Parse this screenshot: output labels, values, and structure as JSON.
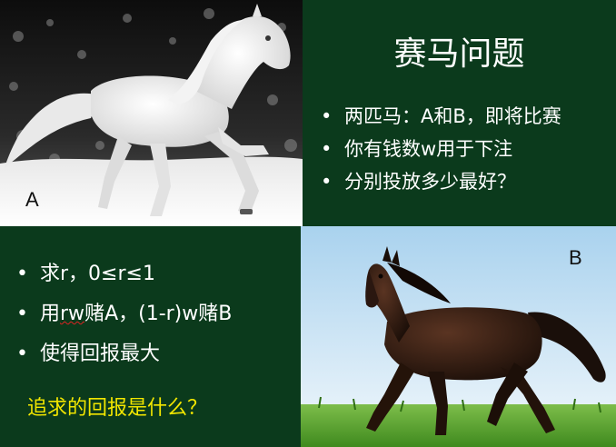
{
  "top_left": {
    "label": "A"
  },
  "top_right": {
    "title": "赛马问题",
    "bullets": [
      "两匹马：A和B，即将比赛",
      "你有钱数w用于下注",
      "分别投放多少最好？"
    ]
  },
  "bottom_left": {
    "bullet_1": "求r，0≤r≤1",
    "bullet_2_prefix": "用",
    "bullet_2_underlined": "rw",
    "bullet_2_suffix": "赌A，(1-r)w赌B",
    "bullet_3": "使得回报最大",
    "question": "追求的回报是什么？"
  },
  "bottom_right": {
    "label": "B"
  },
  "colors": {
    "panel_green": "#0b3a1c",
    "question_yellow": "#f2e600",
    "text_white": "#ffffff"
  },
  "icons": [
    "white-horse-photo",
    "dark-horse-photo"
  ]
}
